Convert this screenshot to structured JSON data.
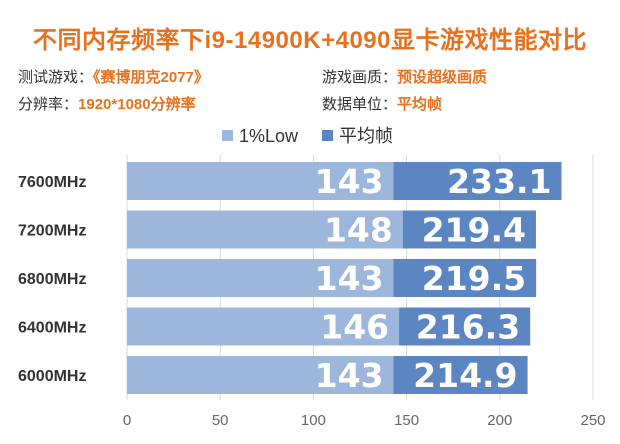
{
  "header": {
    "title": "不同内存频率下i9-14900K+4090显卡游戏性能对比",
    "info": [
      {
        "label": "测试游戏：",
        "value": "《赛博朋克2077》"
      },
      {
        "label": "游戏画质：",
        "value": "预设超级画质"
      },
      {
        "label": "分辨率：",
        "value": "1920*1080分辨率"
      },
      {
        "label": "数据单位：",
        "value": "平均帧"
      }
    ]
  },
  "colors": {
    "low": "#9db6dc",
    "avg": "#5b86c1",
    "accent": "#e8711f"
  },
  "chart_data": {
    "type": "bar",
    "orientation": "horizontal",
    "stacked_overlay": true,
    "categories": [
      "7600MHz",
      "7200MHz",
      "6800MHz",
      "6400MHz",
      "6000MHz"
    ],
    "series": [
      {
        "name": "1%Low",
        "values": [
          143,
          148,
          143,
          146,
          143
        ]
      },
      {
        "name": "平均帧",
        "values": [
          233.1,
          219.4,
          219.5,
          216.3,
          214.9
        ]
      }
    ],
    "xlim": [
      0,
      250
    ],
    "xticks": [
      0,
      50,
      100,
      150,
      200,
      250
    ],
    "grid": true,
    "legend": "top"
  }
}
